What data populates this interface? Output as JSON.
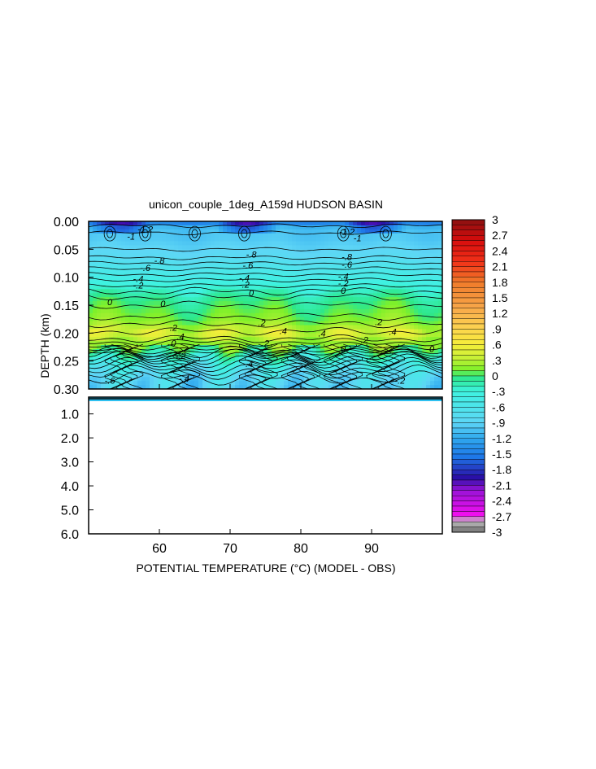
{
  "chart_data": {
    "type": "heatmap",
    "title": "unicon_couple_1deg_A159d HUDSON BASIN",
    "xlabel": "POTENTIAL TEMPERATURE (°C) (MODEL - OBS)",
    "ylabel": "DEPTH (km)",
    "x_range": [
      50,
      100
    ],
    "x_ticks": [
      "60",
      "70",
      "80",
      "90"
    ],
    "upper_panel": {
      "y_range": [
        0.0,
        0.3
      ],
      "y_ticks": [
        "0.00",
        "0.05",
        "0.10",
        "0.15",
        "0.20",
        "0.25",
        "0.30"
      ],
      "depths": [
        0.0,
        0.01,
        0.02,
        0.03,
        0.04,
        0.05,
        0.06,
        0.07,
        0.08,
        0.09,
        0.1,
        0.11,
        0.12,
        0.13,
        0.14,
        0.15,
        0.16,
        0.17,
        0.18,
        0.19,
        0.2,
        0.21,
        0.22,
        0.23,
        0.24,
        0.25,
        0.26,
        0.27,
        0.28,
        0.29,
        0.3
      ],
      "mean_difference_profile": [
        -1.6,
        -1.1,
        -1.0,
        -1.0,
        -0.95,
        -0.9,
        -0.85,
        -0.75,
        -0.65,
        -0.55,
        -0.45,
        -0.35,
        -0.25,
        -0.15,
        -0.05,
        0.0,
        0.05,
        0.1,
        0.15,
        0.3,
        0.45,
        0.3,
        0.15,
        0.0,
        -0.2,
        -0.4,
        -0.55,
        -0.7,
        -0.8,
        -0.85,
        -0.9
      ],
      "contour_labels": [
        {
          "text": "-1.2",
          "x": 58,
          "d": 0.014
        },
        {
          "text": "-1",
          "x": 56,
          "d": 0.027
        },
        {
          "text": "-.8",
          "x": 60,
          "d": 0.07
        },
        {
          "text": "-.6",
          "x": 58,
          "d": 0.083
        },
        {
          "text": "-.4",
          "x": 57,
          "d": 0.103
        },
        {
          "text": "-.2",
          "x": 57,
          "d": 0.114
        },
        {
          "text": "-.8",
          "x": 73,
          "d": 0.059
        },
        {
          "text": "-.6",
          "x": 72.5,
          "d": 0.079
        },
        {
          "text": "-.4",
          "x": 72,
          "d": 0.101
        },
        {
          "text": "-.2",
          "x": 72,
          "d": 0.113
        },
        {
          "text": "-.8",
          "x": 86.5,
          "d": 0.063
        },
        {
          "text": "-.6",
          "x": 86.5,
          "d": 0.077
        },
        {
          "text": "-.4",
          "x": 86,
          "d": 0.098
        },
        {
          "text": "-.2",
          "x": 86,
          "d": 0.111
        },
        {
          "text": "-1.2",
          "x": 86.5,
          "d": 0.018
        },
        {
          "text": "-1",
          "x": 88,
          "d": 0.03
        },
        {
          "text": "0",
          "x": 73,
          "d": 0.128
        },
        {
          "text": "0",
          "x": 86,
          "d": 0.124
        },
        {
          "text": "0",
          "x": 53,
          "d": 0.144
        },
        {
          "text": "0",
          "x": 60.5,
          "d": 0.147
        },
        {
          "text": "0",
          "x": 98.5,
          "d": 0.228
        },
        {
          "text": ".2",
          "x": 62,
          "d": 0.19
        },
        {
          "text": ".2",
          "x": 74.5,
          "d": 0.181
        },
        {
          "text": ".2",
          "x": 91,
          "d": 0.18
        },
        {
          "text": ".2",
          "x": 75,
          "d": 0.218
        },
        {
          "text": ".2",
          "x": 89,
          "d": 0.212
        },
        {
          "text": ".4",
          "x": 77.5,
          "d": 0.196
        },
        {
          "text": ".4",
          "x": 83,
          "d": 0.2
        },
        {
          "text": ".4",
          "x": 63,
          "d": 0.206
        },
        {
          "text": ".4",
          "x": 93,
          "d": 0.197
        },
        {
          "text": "0",
          "x": 62,
          "d": 0.218
        },
        {
          "text": "0",
          "x": 86,
          "d": 0.228
        },
        {
          "text": "-.2",
          "x": 63,
          "d": 0.24
        },
        {
          "text": "-.4",
          "x": 63.5,
          "d": 0.281
        },
        {
          "text": "-.4",
          "x": 72.5,
          "d": 0.255
        },
        {
          "text": "-.2",
          "x": 94,
          "d": 0.285
        },
        {
          "text": "-.6",
          "x": 53,
          "d": 0.285
        }
      ]
    },
    "lower_panel": {
      "y_range": [
        0.3,
        6.0
      ],
      "y_ticks": [
        "1.0",
        "2.0",
        "3.0",
        "4.0",
        "5.0",
        "6.0"
      ],
      "note": "no data below ~0.35 km (blank)"
    },
    "colorbar": {
      "min": -3,
      "max": 3,
      "step": 0.1,
      "labels": [
        "3",
        "2.7",
        "2.4",
        "2.1",
        "1.8",
        "1.5",
        "1.2",
        ".9",
        ".6",
        ".3",
        "0",
        "-.3",
        "-.6",
        "-.9",
        "-1.2",
        "-1.5",
        "-1.8",
        "-2.1",
        "-2.4",
        "-2.7",
        "-3"
      ],
      "stops": [
        [
          -3.0,
          "#6e6e6e"
        ],
        [
          -2.8,
          "#bdbdbd"
        ],
        [
          -2.65,
          "#ee10ee"
        ],
        [
          -2.2,
          "#9a12d8"
        ],
        [
          -1.95,
          "#2a10a8"
        ],
        [
          -1.55,
          "#1e78e8"
        ],
        [
          -1.2,
          "#2fa8ee"
        ],
        [
          -0.9,
          "#5ed6f6"
        ],
        [
          -0.3,
          "#3ef2e0"
        ],
        [
          -0.02,
          "#2ee88a"
        ],
        [
          0.12,
          "#7ef02a"
        ],
        [
          0.35,
          "#c8f036"
        ],
        [
          0.6,
          "#f6ee3a"
        ],
        [
          0.95,
          "#fcd050"
        ],
        [
          1.3,
          "#f7a84a"
        ],
        [
          1.8,
          "#f07a2a"
        ],
        [
          2.2,
          "#f03018"
        ],
        [
          2.6,
          "#d80c0c"
        ],
        [
          3.0,
          "#8a1010"
        ]
      ]
    }
  }
}
